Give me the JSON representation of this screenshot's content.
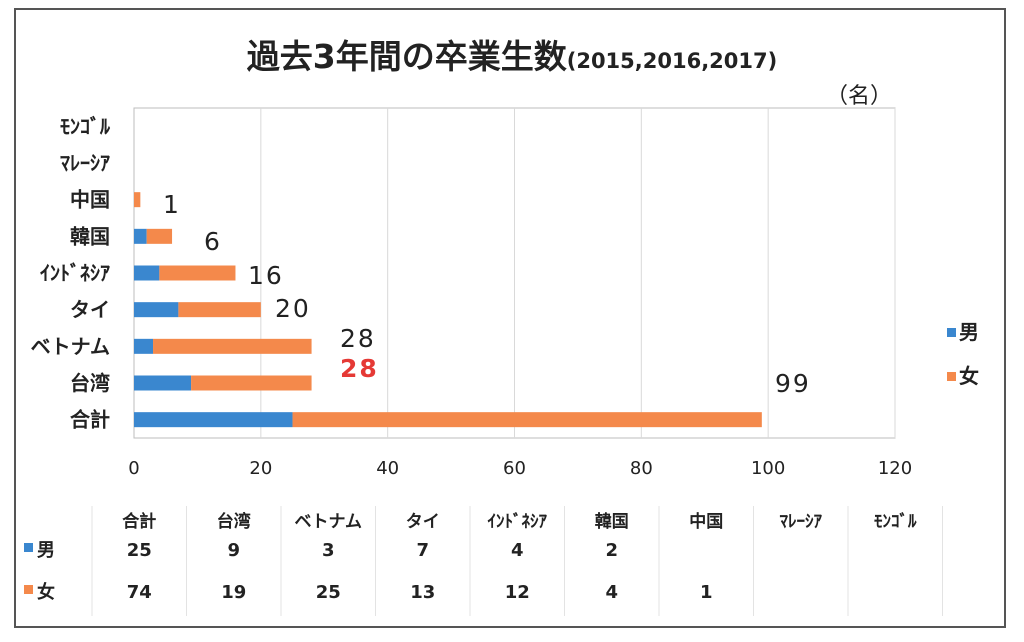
{
  "title": "過去3年間の卒業生数",
  "subtitle": "(2015,2016,2017)",
  "unit": "（名）",
  "colors": {
    "male": "#3a87cf",
    "female": "#f4894b",
    "highlight": "#e53935",
    "text": "#222222"
  },
  "chart_data": {
    "type": "bar",
    "orientation": "horizontal",
    "stacked": true,
    "categories": [
      "合計",
      "台湾",
      "ベトナム",
      "タイ",
      "ｲﾝﾄﾞﾈｼｱ",
      "韓国",
      "中国",
      "ﾏﾚｰｼｱ",
      "ﾓﾝｺﾞﾙ"
    ],
    "series": [
      {
        "name": "男",
        "values": [
          25,
          9,
          3,
          7,
          4,
          2,
          null,
          null,
          null
        ]
      },
      {
        "name": "女",
        "values": [
          74,
          19,
          25,
          13,
          12,
          4,
          1,
          null,
          null
        ]
      }
    ],
    "totals": [
      "99",
      "28",
      "28",
      "20",
      "16",
      "6",
      "1",
      "",
      ""
    ],
    "highlight_total_index": 1,
    "xlim": [
      0,
      120
    ],
    "xticks": [
      "0",
      "20",
      "40",
      "60",
      "80",
      "100",
      "120"
    ],
    "grid": true,
    "legend_position": "right"
  },
  "table": {
    "headers": [
      "合計",
      "台湾",
      "ベトナム",
      "タイ",
      "ｲﾝﾄﾞﾈｼｱ",
      "韓国",
      "中国",
      "ﾏﾚｰｼｱ",
      "ﾓﾝｺﾞﾙ"
    ],
    "rows": [
      {
        "label": "男",
        "cells": [
          "25",
          "9",
          "3",
          "7",
          "4",
          "2",
          "",
          "",
          ""
        ]
      },
      {
        "label": "女",
        "cells": [
          "74",
          "19",
          "25",
          "13",
          "12",
          "4",
          "1",
          "",
          ""
        ]
      }
    ]
  }
}
